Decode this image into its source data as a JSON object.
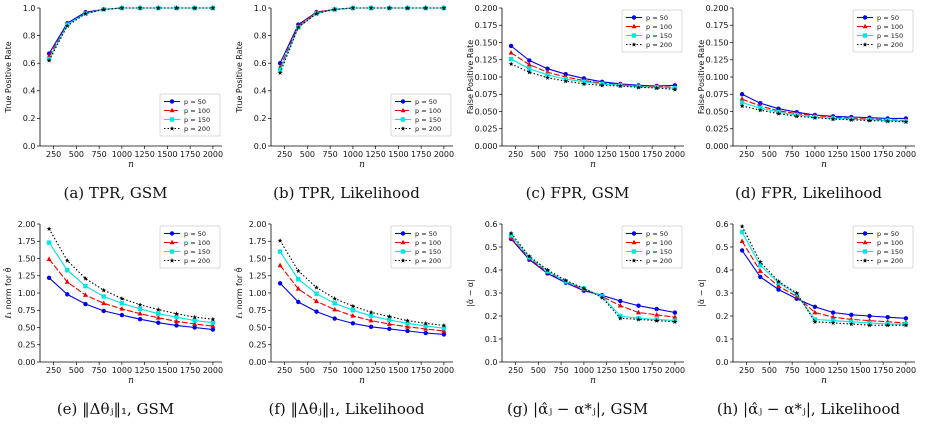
{
  "legend_labels": [
    "p = 50",
    "p = 100",
    "p = 150",
    "p = 200"
  ],
  "series_colors": [
    "#0000ee",
    "#ee0000",
    "#00e5e5",
    "#000000"
  ],
  "chart_data": [
    {
      "type": "line",
      "caption": "(a) TPR, GSM",
      "xlabel": "n",
      "ylabel": "True Positive Rate",
      "x": [
        200,
        400,
        600,
        800,
        1000,
        1200,
        1400,
        1600,
        1800,
        2000
      ],
      "xticks": [
        250,
        500,
        750,
        1000,
        1250,
        1500,
        1750,
        2000
      ],
      "ylim": [
        0.0,
        1.0
      ],
      "yticks": [
        0.0,
        0.2,
        0.4,
        0.6,
        0.8,
        1.0
      ],
      "ytick_decimals": 1,
      "legend": "lower-right",
      "series": [
        {
          "name": "p = 50",
          "values": [
            0.67,
            0.89,
            0.97,
            0.99,
            1.0,
            1.0,
            1.0,
            1.0,
            1.0,
            1.0
          ]
        },
        {
          "name": "p = 100",
          "values": [
            0.65,
            0.88,
            0.96,
            0.99,
            1.0,
            1.0,
            1.0,
            1.0,
            1.0,
            1.0
          ]
        },
        {
          "name": "p = 150",
          "values": [
            0.63,
            0.88,
            0.96,
            0.99,
            1.0,
            1.0,
            1.0,
            1.0,
            1.0,
            1.0
          ]
        },
        {
          "name": "p = 200",
          "values": [
            0.62,
            0.87,
            0.96,
            0.99,
            1.0,
            1.0,
            1.0,
            1.0,
            1.0,
            1.0
          ]
        }
      ]
    },
    {
      "type": "line",
      "caption": "(b) TPR, Likelihood",
      "xlabel": "n",
      "ylabel": "True Positive Rate",
      "x": [
        200,
        400,
        600,
        800,
        1000,
        1200,
        1400,
        1600,
        1800,
        2000
      ],
      "xticks": [
        250,
        500,
        750,
        1000,
        1250,
        1500,
        1750,
        2000
      ],
      "ylim": [
        0.0,
        1.0
      ],
      "yticks": [
        0.0,
        0.2,
        0.4,
        0.6,
        0.8,
        1.0
      ],
      "ytick_decimals": 1,
      "legend": "lower-right",
      "series": [
        {
          "name": "p = 50",
          "values": [
            0.6,
            0.88,
            0.97,
            0.99,
            1.0,
            1.0,
            1.0,
            1.0,
            1.0,
            1.0
          ]
        },
        {
          "name": "p = 100",
          "values": [
            0.57,
            0.87,
            0.97,
            0.99,
            1.0,
            1.0,
            1.0,
            1.0,
            1.0,
            1.0
          ]
        },
        {
          "name": "p = 150",
          "values": [
            0.55,
            0.86,
            0.96,
            0.99,
            1.0,
            1.0,
            1.0,
            1.0,
            1.0,
            1.0
          ]
        },
        {
          "name": "p = 200",
          "values": [
            0.53,
            0.86,
            0.96,
            0.99,
            1.0,
            1.0,
            1.0,
            1.0,
            1.0,
            1.0
          ]
        }
      ]
    },
    {
      "type": "line",
      "caption": "(c) FPR, GSM",
      "xlabel": "n",
      "ylabel": "False Positive Rate",
      "x": [
        200,
        400,
        600,
        800,
        1000,
        1200,
        1400,
        1600,
        1800,
        2000
      ],
      "xticks": [
        250,
        500,
        750,
        1000,
        1250,
        1500,
        1750,
        2000
      ],
      "ylim": [
        0.0,
        0.2
      ],
      "yticks": [
        0.0,
        0.025,
        0.05,
        0.075,
        0.1,
        0.125,
        0.15,
        0.175,
        0.2
      ],
      "ytick_decimals": 3,
      "legend": "upper-right",
      "series": [
        {
          "name": "p = 50",
          "values": [
            0.145,
            0.124,
            0.112,
            0.104,
            0.098,
            0.093,
            0.09,
            0.088,
            0.087,
            0.088
          ]
        },
        {
          "name": "p = 100",
          "values": [
            0.135,
            0.118,
            0.107,
            0.1,
            0.095,
            0.091,
            0.089,
            0.087,
            0.086,
            0.085
          ]
        },
        {
          "name": "p = 150",
          "values": [
            0.126,
            0.112,
            0.103,
            0.097,
            0.093,
            0.09,
            0.088,
            0.086,
            0.085,
            0.084
          ]
        },
        {
          "name": "p = 200",
          "values": [
            0.119,
            0.107,
            0.099,
            0.094,
            0.09,
            0.088,
            0.087,
            0.085,
            0.084,
            0.082
          ]
        }
      ]
    },
    {
      "type": "line",
      "caption": "(d) FPR, Likelihood",
      "xlabel": "n",
      "ylabel": "False Positive Rate",
      "x": [
        200,
        400,
        600,
        800,
        1000,
        1200,
        1400,
        1600,
        1800,
        2000
      ],
      "xticks": [
        250,
        500,
        750,
        1000,
        1250,
        1500,
        1750,
        2000
      ],
      "ylim": [
        0.0,
        0.2
      ],
      "yticks": [
        0.0,
        0.025,
        0.05,
        0.075,
        0.1,
        0.125,
        0.15,
        0.175,
        0.2
      ],
      "ytick_decimals": 3,
      "legend": "upper-right",
      "series": [
        {
          "name": "p = 50",
          "values": [
            0.075,
            0.062,
            0.054,
            0.049,
            0.045,
            0.043,
            0.042,
            0.041,
            0.04,
            0.04
          ]
        },
        {
          "name": "p = 100",
          "values": [
            0.068,
            0.058,
            0.051,
            0.047,
            0.044,
            0.042,
            0.04,
            0.039,
            0.038,
            0.037
          ]
        },
        {
          "name": "p = 150",
          "values": [
            0.063,
            0.055,
            0.049,
            0.045,
            0.042,
            0.04,
            0.039,
            0.038,
            0.037,
            0.036
          ]
        },
        {
          "name": "p = 200",
          "values": [
            0.058,
            0.052,
            0.047,
            0.043,
            0.041,
            0.039,
            0.038,
            0.037,
            0.036,
            0.035
          ]
        }
      ]
    },
    {
      "type": "line",
      "caption": "(e) ‖Δθⱼ‖₁, GSM",
      "xlabel": "n",
      "ylabel": "ℓ₁ norm for θ̂",
      "x": [
        200,
        400,
        600,
        800,
        1000,
        1200,
        1400,
        1600,
        1800,
        2000
      ],
      "xticks": [
        250,
        500,
        750,
        1000,
        1250,
        1500,
        1750,
        2000
      ],
      "ylim": [
        0.0,
        2.0
      ],
      "yticks": [
        0.0,
        0.25,
        0.5,
        0.75,
        1.0,
        1.25,
        1.5,
        1.75,
        2.0
      ],
      "ytick_decimals": 2,
      "legend": "upper-right",
      "series": [
        {
          "name": "p = 50",
          "values": [
            1.22,
            0.98,
            0.84,
            0.74,
            0.68,
            0.62,
            0.57,
            0.53,
            0.5,
            0.47
          ]
        },
        {
          "name": "p = 100",
          "values": [
            1.49,
            1.16,
            0.97,
            0.85,
            0.77,
            0.7,
            0.64,
            0.59,
            0.55,
            0.52
          ]
        },
        {
          "name": "p = 150",
          "values": [
            1.73,
            1.33,
            1.1,
            0.95,
            0.85,
            0.77,
            0.7,
            0.65,
            0.6,
            0.57
          ]
        },
        {
          "name": "p = 200",
          "values": [
            1.93,
            1.47,
            1.21,
            1.04,
            0.92,
            0.83,
            0.76,
            0.7,
            0.65,
            0.62
          ]
        }
      ]
    },
    {
      "type": "line",
      "caption": "(f) ‖Δθⱼ‖₁, Likelihood",
      "xlabel": "n",
      "ylabel": "ℓ₁ norm for θ̂",
      "x": [
        200,
        400,
        600,
        800,
        1000,
        1200,
        1400,
        1600,
        1800,
        2000
      ],
      "xticks": [
        250,
        500,
        750,
        1000,
        1250,
        1500,
        1750,
        2000
      ],
      "ylim": [
        0.0,
        2.0
      ],
      "yticks": [
        0.0,
        0.25,
        0.5,
        0.75,
        1.0,
        1.25,
        1.5,
        1.75,
        2.0
      ],
      "ytick_decimals": 2,
      "legend": "upper-right",
      "series": [
        {
          "name": "p = 50",
          "values": [
            1.14,
            0.87,
            0.73,
            0.63,
            0.56,
            0.51,
            0.48,
            0.45,
            0.42,
            0.4
          ]
        },
        {
          "name": "p = 100",
          "values": [
            1.4,
            1.06,
            0.88,
            0.76,
            0.67,
            0.6,
            0.55,
            0.51,
            0.48,
            0.45
          ]
        },
        {
          "name": "p = 150",
          "values": [
            1.6,
            1.2,
            0.99,
            0.85,
            0.75,
            0.67,
            0.61,
            0.56,
            0.52,
            0.49
          ]
        },
        {
          "name": "p = 200",
          "values": [
            1.76,
            1.32,
            1.08,
            0.92,
            0.81,
            0.72,
            0.66,
            0.6,
            0.56,
            0.53
          ]
        }
      ]
    },
    {
      "type": "line",
      "caption": "(g) |α̂ⱼ − α*ⱼ|, GSM",
      "xlabel": "n",
      "ylabel": "|α̂ − α|",
      "x": [
        200,
        400,
        600,
        800,
        1000,
        1200,
        1400,
        1600,
        1800,
        2000
      ],
      "xticks": [
        250,
        500,
        750,
        1000,
        1250,
        1500,
        1750,
        2000
      ],
      "ylim": [
        0.0,
        0.6
      ],
      "yticks": [
        0.0,
        0.1,
        0.2,
        0.3,
        0.4,
        0.5,
        0.6
      ],
      "ytick_decimals": 1,
      "legend": "upper-right",
      "series": [
        {
          "name": "p = 50",
          "values": [
            0.535,
            0.445,
            0.385,
            0.345,
            0.31,
            0.29,
            0.265,
            0.245,
            0.23,
            0.215
          ]
        },
        {
          "name": "p = 100",
          "values": [
            0.54,
            0.45,
            0.39,
            0.35,
            0.315,
            0.285,
            0.245,
            0.215,
            0.205,
            0.195
          ]
        },
        {
          "name": "p = 150",
          "values": [
            0.55,
            0.455,
            0.395,
            0.35,
            0.32,
            0.285,
            0.2,
            0.19,
            0.185,
            0.18
          ]
        },
        {
          "name": "p = 200",
          "values": [
            0.56,
            0.46,
            0.4,
            0.355,
            0.32,
            0.28,
            0.19,
            0.185,
            0.18,
            0.175
          ]
        }
      ]
    },
    {
      "type": "line",
      "caption": "(h) |α̂ⱼ − α*ⱼ|, Likelihood",
      "xlabel": "n",
      "ylabel": "|α̂ − α|",
      "x": [
        200,
        400,
        600,
        800,
        1000,
        1200,
        1400,
        1600,
        1800,
        2000
      ],
      "xticks": [
        250,
        500,
        750,
        1000,
        1250,
        1500,
        1750,
        2000
      ],
      "ylim": [
        0.0,
        0.6
      ],
      "yticks": [
        0.0,
        0.1,
        0.2,
        0.3,
        0.4,
        0.5,
        0.6
      ],
      "ytick_decimals": 1,
      "legend": "upper-right",
      "series": [
        {
          "name": "p = 50",
          "values": [
            0.485,
            0.37,
            0.315,
            0.275,
            0.24,
            0.215,
            0.205,
            0.2,
            0.195,
            0.19
          ]
        },
        {
          "name": "p = 100",
          "values": [
            0.525,
            0.395,
            0.33,
            0.285,
            0.215,
            0.195,
            0.185,
            0.18,
            0.175,
            0.17
          ]
        },
        {
          "name": "p = 150",
          "values": [
            0.565,
            0.42,
            0.345,
            0.295,
            0.185,
            0.18,
            0.175,
            0.17,
            0.165,
            0.165
          ]
        },
        {
          "name": "p = 200",
          "values": [
            0.59,
            0.435,
            0.35,
            0.3,
            0.175,
            0.17,
            0.165,
            0.16,
            0.16,
            0.16
          ]
        }
      ]
    }
  ]
}
